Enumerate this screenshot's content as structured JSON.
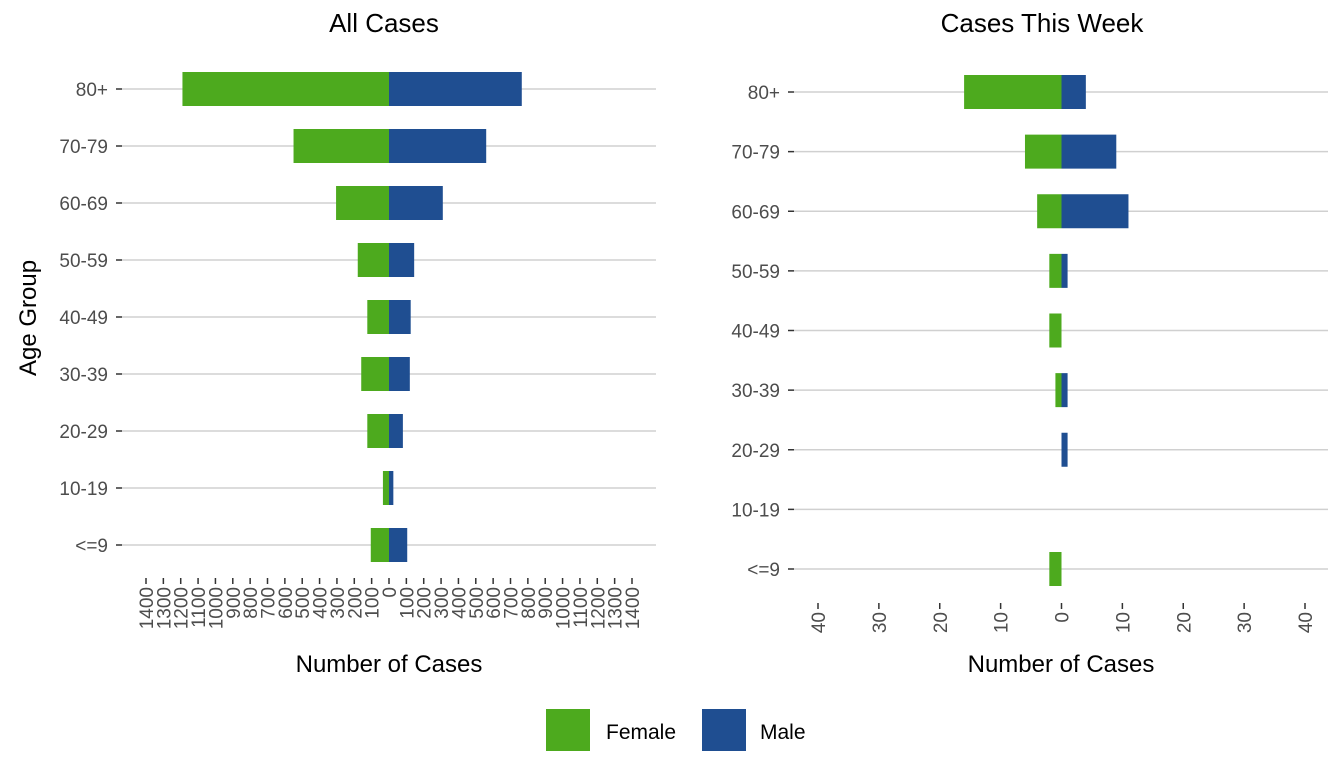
{
  "chart_data": [
    {
      "type": "bar",
      "orientation": "horizontal-population-pyramid",
      "title": "All Cases",
      "xlabel": "Number of Cases",
      "ylabel": "Age Group",
      "categories": [
        "80+",
        "70-79",
        "60-69",
        "50-59",
        "40-49",
        "30-39",
        "20-29",
        "10-19",
        "<=9"
      ],
      "series": [
        {
          "name": "Female",
          "color": "#4daa1e",
          "values": [
            1190,
            550,
            305,
            180,
            125,
            160,
            125,
            35,
            105
          ]
        },
        {
          "name": "Male",
          "color": "#1f4e91",
          "values": [
            765,
            560,
            310,
            145,
            125,
            120,
            80,
            25,
            105
          ]
        }
      ],
      "xlim": [
        -1400,
        1400
      ],
      "xticks": [
        -1400,
        -1300,
        -1200,
        -1100,
        -1000,
        -900,
        -800,
        -700,
        -600,
        -500,
        -400,
        -300,
        -200,
        -100,
        0,
        100,
        200,
        300,
        400,
        500,
        600,
        700,
        800,
        900,
        1000,
        1100,
        1200,
        1300,
        1400
      ],
      "xtick_labels": [
        "1400",
        "1300",
        "1200",
        "1100",
        "1000",
        "900",
        "800",
        "700",
        "600",
        "500",
        "400",
        "300",
        "200",
        "100",
        "0",
        "100",
        "200",
        "300",
        "400",
        "500",
        "600",
        "700",
        "800",
        "900",
        "1000",
        "1100",
        "1200",
        "1300",
        "1400"
      ],
      "grid": "horizontal"
    },
    {
      "type": "bar",
      "orientation": "horizontal-population-pyramid",
      "title": "Cases This Week",
      "xlabel": "Number of Cases",
      "ylabel": "",
      "categories": [
        "80+",
        "70-79",
        "60-69",
        "50-59",
        "40-49",
        "30-39",
        "20-29",
        "10-19",
        "<=9"
      ],
      "series": [
        {
          "name": "Female",
          "color": "#4daa1e",
          "values": [
            16,
            6,
            4,
            2,
            2,
            1,
            0,
            0,
            2
          ]
        },
        {
          "name": "Male",
          "color": "#1f4e91",
          "values": [
            4,
            9,
            11,
            1,
            0,
            1,
            1,
            0,
            0
          ]
        }
      ],
      "xlim": [
        -40,
        40
      ],
      "xticks": [
        -40,
        -30,
        -20,
        -10,
        0,
        10,
        20,
        30,
        40
      ],
      "xtick_labels": [
        "40",
        "30",
        "20",
        "10",
        "0",
        "10",
        "20",
        "30",
        "40"
      ],
      "grid": "horizontal"
    }
  ],
  "legend": {
    "position": "bottom",
    "items": [
      {
        "label": "Female",
        "color": "#4daa1e"
      },
      {
        "label": "Male",
        "color": "#1f4e91"
      }
    ]
  }
}
